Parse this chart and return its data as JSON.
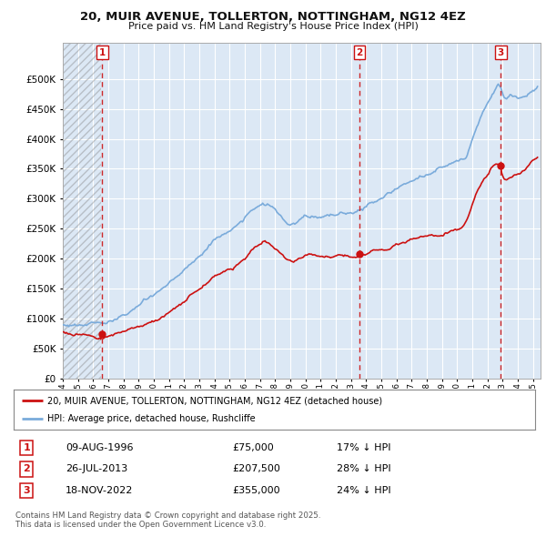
{
  "title": "20, MUIR AVENUE, TOLLERTON, NOTTINGHAM, NG12 4EZ",
  "subtitle": "Price paid vs. HM Land Registry's House Price Index (HPI)",
  "ylim": [
    0,
    560000
  ],
  "yticks": [
    0,
    50000,
    100000,
    150000,
    200000,
    250000,
    300000,
    350000,
    400000,
    450000,
    500000
  ],
  "xlim_start": 1994.0,
  "xlim_end": 2025.5,
  "background_color": "#ffffff",
  "plot_bg_color": "#dce8f5",
  "hpi_color": "#7aabdb",
  "price_color": "#cc1111",
  "vline_color": "#cc1111",
  "transactions": [
    {
      "label": "1",
      "date_num": 1996.608,
      "price": 75000,
      "date_str": "09-AUG-1996",
      "price_str": "£75,000",
      "hpi_str": "17% ↓ HPI"
    },
    {
      "label": "2",
      "date_num": 2013.558,
      "price": 207500,
      "date_str": "26-JUL-2013",
      "price_str": "£207,500",
      "hpi_str": "28% ↓ HPI"
    },
    {
      "label": "3",
      "date_num": 2022.883,
      "price": 355000,
      "date_str": "18-NOV-2022",
      "price_str": "£355,000",
      "hpi_str": "24% ↓ HPI"
    }
  ],
  "legend_label_price": "20, MUIR AVENUE, TOLLERTON, NOTTINGHAM, NG12 4EZ (detached house)",
  "legend_label_hpi": "HPI: Average price, detached house, Rushcliffe",
  "footer": "Contains HM Land Registry data © Crown copyright and database right 2025.\nThis data is licensed under the Open Government Licence v3.0."
}
